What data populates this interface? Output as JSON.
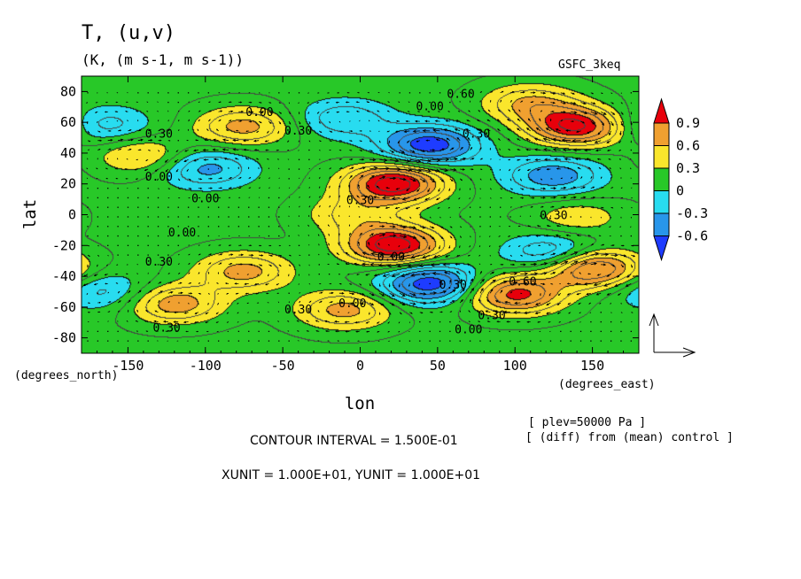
{
  "header": {
    "title": "T, (u,v)",
    "units": "(K, (m s-1, m s-1))",
    "source": "GSFC_3keq"
  },
  "footer": {
    "plev": "[ plev=50000 Pa ]",
    "diff": "[ (diff) from (mean) control ]",
    "contour_interval": "CONTOUR INTERVAL = 1.500E-01",
    "units_line": "XUNIT = 1.000E+01, YUNIT = 1.000E+01"
  },
  "chart_data": {
    "type": "heatmap",
    "xlabel": "lon",
    "ylabel": "lat",
    "xunit_label": "(degrees_east)",
    "yunit_label": "(degrees_north)",
    "xlim": [
      -180,
      180
    ],
    "ylim": [
      -90,
      90
    ],
    "xticks": [
      -150,
      -100,
      -50,
      0,
      50,
      100,
      150
    ],
    "yticks": [
      -80,
      -60,
      -40,
      -20,
      0,
      20,
      40,
      60,
      80
    ],
    "colorbar": {
      "levels": [
        "0.9",
        "0.6",
        "0.3",
        "0",
        "-0.3",
        "-0.6"
      ],
      "colors": [
        "#e8000b",
        "#f0a030",
        "#fae62c",
        "#28c828",
        "#28dcf0",
        "#2896ea",
        "#1e3cff"
      ]
    },
    "contour_labels": [
      {
        "text": "0.00",
        "lon": -65,
        "lat": 64
      },
      {
        "text": "0.30",
        "lon": -40,
        "lat": 52
      },
      {
        "text": "0.30",
        "lon": -130,
        "lat": 50
      },
      {
        "text": "0.00",
        "lon": -130,
        "lat": 22
      },
      {
        "text": "0.00",
        "lon": -100,
        "lat": 8
      },
      {
        "text": "0.00",
        "lon": -115,
        "lat": -14
      },
      {
        "text": "0.30",
        "lon": 0,
        "lat": 7
      },
      {
        "text": "0.00",
        "lon": 45,
        "lat": 68
      },
      {
        "text": "0.60",
        "lon": 65,
        "lat": 76
      },
      {
        "text": "0.30",
        "lon": 75,
        "lat": 50
      },
      {
        "text": "0.30",
        "lon": 125,
        "lat": -3
      },
      {
        "text": "0.00",
        "lon": 20,
        "lat": -30
      },
      {
        "text": "0.30",
        "lon": 60,
        "lat": -48
      },
      {
        "text": "0.60",
        "lon": 105,
        "lat": -46
      },
      {
        "text": "0.30",
        "lon": 85,
        "lat": -68
      },
      {
        "text": "0.00",
        "lon": 70,
        "lat": -77
      },
      {
        "text": "0.00",
        "lon": -5,
        "lat": -60
      },
      {
        "text": "0.30",
        "lon": -40,
        "lat": -64
      },
      {
        "text": "0.30",
        "lon": -125,
        "lat": -76
      },
      {
        "text": "0.30",
        "lon": -130,
        "lat": -33
      }
    ],
    "field_centers": [
      {
        "lon": 22,
        "lat": 20,
        "value": 1.05
      },
      {
        "lon": 22,
        "lat": -20,
        "value": 1.05
      },
      {
        "lon": 45,
        "lat": 45,
        "value": -0.85
      },
      {
        "lon": 45,
        "lat": -45,
        "value": -0.85
      },
      {
        "lon": 140,
        "lat": 57,
        "value": 0.95
      },
      {
        "lon": 150,
        "lat": -35,
        "value": 0.9
      },
      {
        "lon": 100,
        "lat": -52,
        "value": 0.85
      },
      {
        "lon": 110,
        "lat": 72,
        "value": 0.5
      },
      {
        "lon": -75,
        "lat": 57,
        "value": 0.55
      },
      {
        "lon": -75,
        "lat": -37,
        "value": 0.55
      },
      {
        "lon": -120,
        "lat": -58,
        "value": 0.6
      },
      {
        "lon": -10,
        "lat": -62,
        "value": 0.55
      },
      {
        "lon": 125,
        "lat": 25,
        "value": -0.55
      },
      {
        "lon": 125,
        "lat": -25,
        "value": -0.5
      },
      {
        "lon": -100,
        "lat": 30,
        "value": -0.5
      },
      {
        "lon": -165,
        "lat": 58,
        "value": -0.35
      },
      {
        "lon": -165,
        "lat": -50,
        "value": -0.35
      },
      {
        "lon": -10,
        "lat": 62,
        "value": -0.4
      },
      {
        "lon": -5,
        "lat": 0,
        "value": 0.35
      },
      {
        "lon": 140,
        "lat": -2,
        "value": 0.3
      },
      {
        "lon": -140,
        "lat": 38,
        "value": 0.4
      }
    ]
  }
}
